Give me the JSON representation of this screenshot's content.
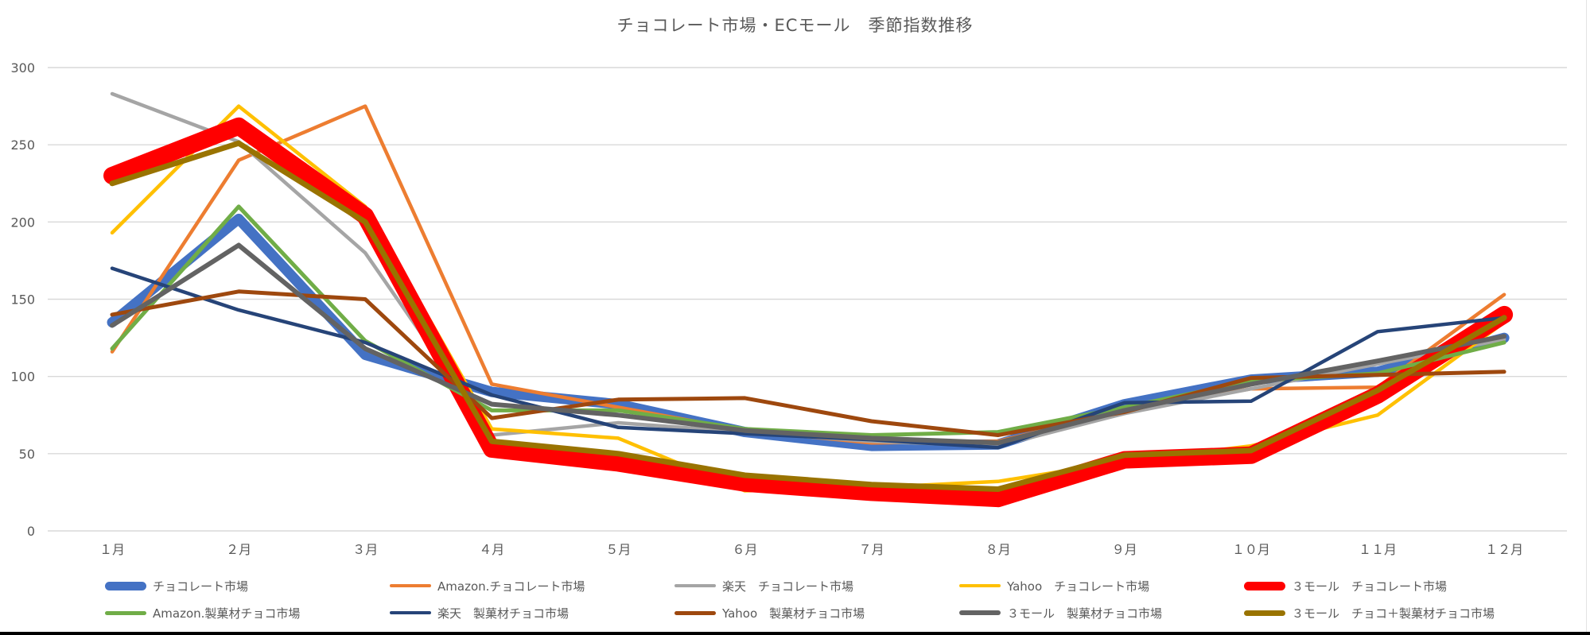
{
  "chart_data": {
    "type": "line",
    "title": "チョコレート市場・ECモール　季節指数推移",
    "categories": [
      "１月",
      "２月",
      "３月",
      "４月",
      "５月",
      "６月",
      "７月",
      "８月",
      "９月",
      "１０月",
      "１１月",
      "１２月"
    ],
    "xlabel": "",
    "ylabel": "",
    "ylim": [
      0,
      300
    ],
    "y_ticks": [
      0,
      50,
      100,
      150,
      200,
      250,
      300
    ],
    "grid": true,
    "legend_position": "bottom",
    "series": [
      {
        "name": "チョコレート市場",
        "color": "#4472C4",
        "line_width": 13,
        "values": [
          135,
          202,
          114,
          90,
          82,
          64,
          55,
          56,
          82,
          98,
          103,
          125
        ]
      },
      {
        "name": "Amazon.チョコレート市場",
        "color": "#ED7D31",
        "line_width": 4.5,
        "values": [
          116,
          240,
          275,
          95,
          80,
          65,
          57,
          58,
          78,
          92,
          93,
          153
        ]
      },
      {
        "name": "楽天　チョコレート市場",
        "color": "#A5A5A5",
        "line_width": 4.5,
        "values": [
          283,
          252,
          180,
          62,
          70,
          64,
          58,
          55,
          76,
          92,
          108,
          124
        ]
      },
      {
        "name": "Yahoo　チョコレート市場",
        "color": "#FFC000",
        "line_width": 4.5,
        "values": [
          193,
          275,
          210,
          66,
          60,
          26,
          28,
          32,
          45,
          55,
          75,
          135
        ]
      },
      {
        "name": "３モール　チョコレート市場",
        "color": "#FF0000",
        "line_width": 22,
        "values": [
          230,
          262,
          204,
          53,
          44,
          31,
          25,
          21,
          46,
          49,
          88,
          140
        ]
      },
      {
        "name": "Amazon.製菓材チョコ市場",
        "color": "#70AD47",
        "line_width": 5,
        "values": [
          118,
          210,
          123,
          78,
          78,
          66,
          62,
          64,
          80,
          97,
          102,
          122
        ]
      },
      {
        "name": "楽天　製菓材チョコ市場",
        "color": "#264478",
        "line_width": 4.5,
        "values": [
          170,
          143,
          122,
          88,
          67,
          63,
          59,
          54,
          83,
          84,
          129,
          138
        ]
      },
      {
        "name": "Yahoo　製菓材チョコ市場",
        "color": "#9E480E",
        "line_width": 5,
        "values": [
          140,
          155,
          150,
          73,
          85,
          86,
          71,
          62,
          77,
          99,
          101,
          103
        ]
      },
      {
        "name": "３モール　製菓材チョコ市場",
        "color": "#636363",
        "line_width": 6,
        "values": [
          133,
          185,
          118,
          82,
          75,
          65,
          60,
          57,
          78,
          95,
          110,
          126
        ]
      },
      {
        "name": "３モール　チョコ＋製菓材チョコ市場",
        "color": "#997300",
        "line_width": 7,
        "values": [
          225,
          251,
          200,
          58,
          50,
          36,
          30,
          27,
          49,
          52,
          91,
          138
        ]
      }
    ]
  },
  "colors": {
    "text": "#595959",
    "gridline": "#D9D9D9",
    "background": "#FFFFFF",
    "bottom_border": "#000000"
  }
}
